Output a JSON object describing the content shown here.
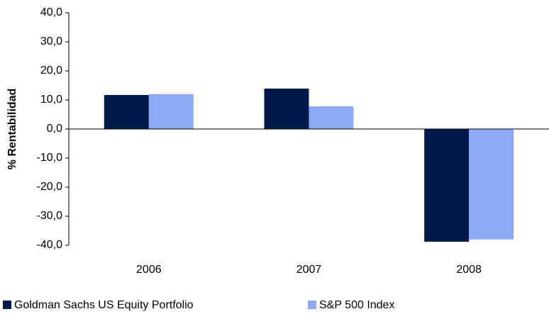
{
  "chart_data": {
    "type": "bar",
    "y_label": "% Rentabilidad",
    "categories": [
      "2006",
      "2007",
      "2008"
    ],
    "series": [
      {
        "name": "Goldman Sachs US Equity Portfolio",
        "color": "#021a4a",
        "values": [
          11.7,
          13.9,
          -38.8
        ]
      },
      {
        "name": "S&P 500 Index",
        "color": "#8eaaf6",
        "values": [
          12.0,
          7.8,
          -38.0
        ]
      }
    ],
    "ylim": [
      -40,
      40
    ],
    "yticks": [
      {
        "value": -40,
        "label": "-40,0"
      },
      {
        "value": -30,
        "label": "-30,0"
      },
      {
        "value": -20,
        "label": "-20,0"
      },
      {
        "value": -10,
        "label": "-10,0"
      },
      {
        "value": 0,
        "label": "0,0"
      },
      {
        "value": 10,
        "label": "10,0"
      },
      {
        "value": 20,
        "label": "20,0"
      },
      {
        "value": 30,
        "label": "30,0"
      },
      {
        "value": 40,
        "label": "40,0"
      }
    ],
    "grid": false,
    "legend": "bottom"
  }
}
